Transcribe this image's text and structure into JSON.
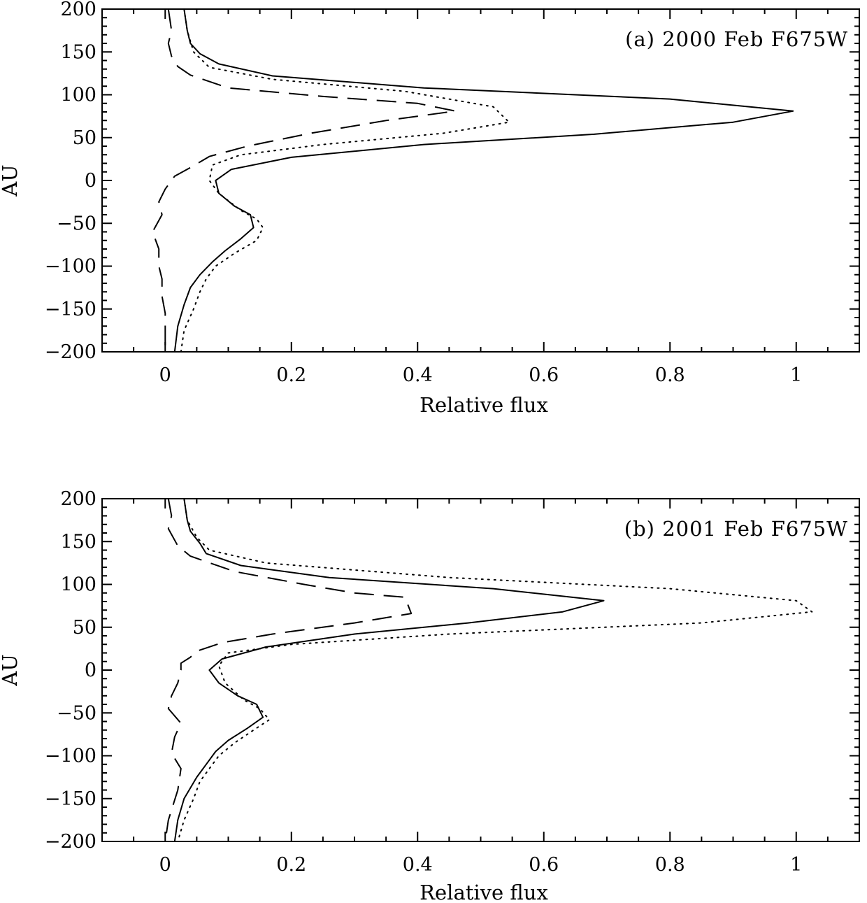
{
  "chart_data": [
    {
      "type": "line",
      "title": "(a) 2000 Feb F675W",
      "xlabel": "Relative flux",
      "ylabel": "AU",
      "xlim": [
        -0.1,
        1.1
      ],
      "ylim": [
        -200,
        200
      ],
      "x_ticks": [
        0,
        0.2,
        0.4,
        0.6,
        0.8,
        1
      ],
      "x_tick_labels": [
        "0",
        "0.2",
        "0.4",
        "0.6",
        "0.8",
        "1"
      ],
      "y_ticks": [
        200,
        150,
        100,
        50,
        0,
        -50,
        -100,
        -150,
        -200
      ],
      "y_tick_labels": [
        "200",
        "150",
        "100",
        "50",
        "0",
        "−50",
        "−100",
        "−150",
        "−200"
      ],
      "legend": "none",
      "series": [
        {
          "name": "solid",
          "style": "solid",
          "points": [
            [
              0.03,
              200
            ],
            [
              0.035,
              175
            ],
            [
              0.04,
              160
            ],
            [
              0.055,
              148
            ],
            [
              0.085,
              136
            ],
            [
              0.17,
              122
            ],
            [
              0.41,
              108
            ],
            [
              0.8,
              95
            ],
            [
              0.995,
              81
            ],
            [
              0.9,
              68
            ],
            [
              0.68,
              54
            ],
            [
              0.41,
              42
            ],
            [
              0.2,
              27
            ],
            [
              0.105,
              13
            ],
            [
              0.08,
              0
            ],
            [
              0.085,
              -15
            ],
            [
              0.11,
              -30
            ],
            [
              0.135,
              -40
            ],
            [
              0.14,
              -55
            ],
            [
              0.12,
              -68
            ],
            [
              0.095,
              -82
            ],
            [
              0.075,
              -95
            ],
            [
              0.055,
              -110
            ],
            [
              0.04,
              -125
            ],
            [
              0.03,
              -145
            ],
            [
              0.02,
              -170
            ],
            [
              0.015,
              -200
            ]
          ]
        },
        {
          "name": "dotted",
          "style": "dotted",
          "points": [
            [
              0.03,
              200
            ],
            [
              0.035,
              175
            ],
            [
              0.045,
              150
            ],
            [
              0.07,
              132
            ],
            [
              0.17,
              118
            ],
            [
              0.38,
              104
            ],
            [
              0.52,
              86
            ],
            [
              0.545,
              68
            ],
            [
              0.44,
              55
            ],
            [
              0.25,
              42
            ],
            [
              0.12,
              30
            ],
            [
              0.075,
              18
            ],
            [
              0.07,
              0
            ],
            [
              0.085,
              -15
            ],
            [
              0.12,
              -35
            ],
            [
              0.145,
              -45
            ],
            [
              0.155,
              -55
            ],
            [
              0.145,
              -70
            ],
            [
              0.11,
              -85
            ],
            [
              0.08,
              -100
            ],
            [
              0.065,
              -115
            ],
            [
              0.055,
              -130
            ],
            [
              0.045,
              -150
            ],
            [
              0.03,
              -175
            ],
            [
              0.025,
              -200
            ]
          ]
        },
        {
          "name": "dashed",
          "style": "dashed",
          "points": [
            [
              0.005,
              200
            ],
            [
              0.01,
              175
            ],
            [
              0.005,
              160
            ],
            [
              0.01,
              145
            ],
            [
              0.02,
              133
            ],
            [
              0.04,
              123
            ],
            [
              0.1,
              108
            ],
            [
              0.25,
              98
            ],
            [
              0.4,
              90
            ],
            [
              0.46,
              81
            ],
            [
              0.35,
              70
            ],
            [
              0.23,
              55
            ],
            [
              0.13,
              40
            ],
            [
              0.07,
              28
            ],
            [
              0.04,
              15
            ],
            [
              0.015,
              5
            ],
            [
              0.0,
              -10
            ],
            [
              -0.01,
              -25
            ],
            [
              -0.005,
              -40
            ],
            [
              -0.02,
              -60
            ],
            [
              -0.01,
              -80
            ],
            [
              -0.01,
              -100
            ],
            [
              -0.005,
              -115
            ],
            [
              -0.005,
              -135
            ],
            [
              0.0,
              -155
            ],
            [
              0.0,
              -180
            ],
            [
              0.0,
              -200
            ]
          ]
        }
      ]
    },
    {
      "type": "line",
      "title": "(b) 2001 Feb F675W",
      "xlabel": "Relative flux",
      "ylabel": "AU",
      "xlim": [
        -0.1,
        1.1
      ],
      "ylim": [
        -200,
        200
      ],
      "x_ticks": [
        0,
        0.2,
        0.4,
        0.6,
        0.8,
        1
      ],
      "x_tick_labels": [
        "0",
        "0.2",
        "0.4",
        "0.6",
        "0.8",
        "1"
      ],
      "y_ticks": [
        200,
        150,
        100,
        50,
        0,
        -50,
        -100,
        -150,
        -200
      ],
      "y_tick_labels": [
        "200",
        "150",
        "100",
        "50",
        "0",
        "−50",
        "−100",
        "−150",
        "−200"
      ],
      "legend": "none",
      "series": [
        {
          "name": "solid",
          "style": "solid",
          "points": [
            [
              0.03,
              200
            ],
            [
              0.035,
              175
            ],
            [
              0.04,
              162
            ],
            [
              0.055,
              148
            ],
            [
              0.065,
              136
            ],
            [
              0.12,
              122
            ],
            [
              0.26,
              108
            ],
            [
              0.52,
              95
            ],
            [
              0.695,
              81
            ],
            [
              0.63,
              68
            ],
            [
              0.48,
              55
            ],
            [
              0.3,
              42
            ],
            [
              0.16,
              27
            ],
            [
              0.09,
              13
            ],
            [
              0.07,
              0
            ],
            [
              0.085,
              -15
            ],
            [
              0.115,
              -30
            ],
            [
              0.145,
              -40
            ],
            [
              0.155,
              -55
            ],
            [
              0.13,
              -68
            ],
            [
              0.1,
              -82
            ],
            [
              0.08,
              -95
            ],
            [
              0.065,
              -110
            ],
            [
              0.05,
              -125
            ],
            [
              0.03,
              -150
            ],
            [
              0.02,
              -175
            ],
            [
              0.015,
              -200
            ]
          ]
        },
        {
          "name": "dotted",
          "style": "dotted",
          "points": [
            [
              0.03,
              200
            ],
            [
              0.035,
              175
            ],
            [
              0.05,
              155
            ],
            [
              0.07,
              140
            ],
            [
              0.16,
              125
            ],
            [
              0.45,
              108
            ],
            [
              0.8,
              95
            ],
            [
              1.0,
              81
            ],
            [
              1.025,
              68
            ],
            [
              0.85,
              55
            ],
            [
              0.45,
              42
            ],
            [
              0.2,
              30
            ],
            [
              0.1,
              20
            ],
            [
              0.085,
              5
            ],
            [
              0.095,
              -15
            ],
            [
              0.125,
              -35
            ],
            [
              0.15,
              -45
            ],
            [
              0.165,
              -58
            ],
            [
              0.14,
              -70
            ],
            [
              0.11,
              -85
            ],
            [
              0.085,
              -100
            ],
            [
              0.07,
              -115
            ],
            [
              0.055,
              -130
            ],
            [
              0.045,
              -150
            ],
            [
              0.03,
              -175
            ],
            [
              0.02,
              -200
            ]
          ]
        },
        {
          "name": "dashed",
          "style": "dashed",
          "points": [
            [
              0.005,
              200
            ],
            [
              0.01,
              180
            ],
            [
              0.005,
              165
            ],
            [
              0.02,
              145
            ],
            [
              0.04,
              133
            ],
            [
              0.11,
              115
            ],
            [
              0.22,
              100
            ],
            [
              0.3,
              90
            ],
            [
              0.38,
              85
            ],
            [
              0.39,
              66
            ],
            [
              0.3,
              55
            ],
            [
              0.17,
              42
            ],
            [
              0.09,
              32
            ],
            [
              0.05,
              22
            ],
            [
              0.04,
              15
            ],
            [
              0.025,
              8
            ],
            [
              0.025,
              0
            ],
            [
              0.02,
              -15
            ],
            [
              0.01,
              -30
            ],
            [
              0.005,
              -45
            ],
            [
              0.025,
              -62
            ],
            [
              0.015,
              -78
            ],
            [
              0.01,
              -97
            ],
            [
              0.025,
              -115
            ],
            [
              0.02,
              -140
            ],
            [
              0.005,
              -175
            ],
            [
              0.0,
              -200
            ]
          ]
        }
      ]
    }
  ]
}
